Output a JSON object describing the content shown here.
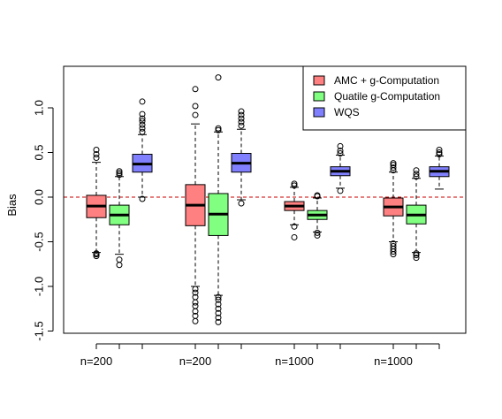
{
  "chart_data": {
    "type": "boxplot",
    "ylabel": "Bias",
    "ylim": [
      -1.5,
      1.4
    ],
    "yticks": [
      -1.5,
      -1.0,
      -0.5,
      0.0,
      0.5,
      1.0
    ],
    "ytick_labels": [
      "-1.5",
      "-1.0",
      "-0.5",
      "0.0",
      "0.5",
      "1.0"
    ],
    "reference_line": {
      "y": 0.0,
      "style": "dashed",
      "color": "#cc0000"
    },
    "group_labels": [
      "n=200",
      "n=200",
      "n=1000",
      "n=1000"
    ],
    "legend": {
      "placement": "top-right",
      "items": [
        {
          "name": "AMC + g-Computation",
          "color": "#ff8080"
        },
        {
          "name": "Quatile g-Computation",
          "color": "#80ff80"
        },
        {
          "name": "WQS",
          "color": "#8080ff"
        }
      ]
    },
    "series": [
      {
        "name": "AMC + g-Computation",
        "color": "#ff8080",
        "boxes": [
          {
            "group": 0,
            "q1": -0.23,
            "median": -0.1,
            "q3": 0.02,
            "whisker_low": -0.62,
            "whisker_high": 0.39,
            "outliers": [
              -0.63,
              -0.64,
              -0.66,
              0.44,
              0.48,
              0.53
            ]
          },
          {
            "group": 1,
            "q1": -0.32,
            "median": -0.09,
            "q3": 0.14,
            "whisker_low": -1.0,
            "whisker_high": 0.82,
            "outliers": [
              -1.03,
              -1.07,
              -1.12,
              -1.18,
              -1.22,
              -1.28,
              -1.33,
              -1.39,
              0.92,
              1.02,
              1.21
            ]
          },
          {
            "group": 2,
            "q1": -0.15,
            "median": -0.1,
            "q3": -0.05,
            "whisker_low": -0.31,
            "whisker_high": 0.11,
            "outliers": [
              -0.33,
              -0.45,
              0.13,
              0.15
            ]
          },
          {
            "group": 3,
            "q1": -0.21,
            "median": -0.11,
            "q3": -0.01,
            "whisker_low": -0.5,
            "whisker_high": 0.28,
            "outliers": [
              -0.52,
              -0.55,
              -0.58,
              -0.61,
              -0.64,
              0.3,
              0.33,
              0.36,
              0.38
            ]
          }
        ]
      },
      {
        "name": "Quatile g-Computation",
        "color": "#80ff80",
        "boxes": [
          {
            "group": 0,
            "q1": -0.31,
            "median": -0.2,
            "q3": -0.09,
            "whisker_low": -0.64,
            "whisker_high": 0.23,
            "outliers": [
              -0.7,
              -0.76,
              0.25,
              0.27,
              0.29
            ]
          },
          {
            "group": 1,
            "q1": -0.43,
            "median": -0.19,
            "q3": 0.04,
            "whisker_low": -1.1,
            "whisker_high": 0.73,
            "outliers": [
              -1.12,
              -1.15,
              -1.2,
              -1.25,
              -1.3,
              -1.35,
              -1.4,
              0.75,
              0.77,
              1.34
            ]
          },
          {
            "group": 2,
            "q1": -0.25,
            "median": -0.2,
            "q3": -0.15,
            "whisker_low": -0.39,
            "whisker_high": -0.01,
            "outliers": [
              -0.4,
              -0.43,
              0.01,
              0.02
            ]
          },
          {
            "group": 3,
            "q1": -0.3,
            "median": -0.2,
            "q3": -0.09,
            "whisker_low": -0.62,
            "whisker_high": 0.21,
            "outliers": [
              -0.63,
              -0.65,
              -0.68,
              0.23,
              0.26,
              0.3
            ]
          }
        ]
      },
      {
        "name": "WQS",
        "color": "#8080ff",
        "boxes": [
          {
            "group": 0,
            "q1": 0.28,
            "median": 0.37,
            "q3": 0.48,
            "whisker_low": 0.0,
            "whisker_high": 0.7,
            "outliers": [
              -0.02,
              0.73,
              0.77,
              0.81,
              0.85,
              0.88,
              0.93,
              1.07
            ]
          },
          {
            "group": 1,
            "q1": 0.28,
            "median": 0.38,
            "q3": 0.49,
            "whisker_low": -0.03,
            "whisker_high": 0.76,
            "outliers": [
              -0.07,
              0.8,
              0.84,
              0.88,
              0.92,
              0.96
            ]
          },
          {
            "group": 2,
            "q1": 0.24,
            "median": 0.29,
            "q3": 0.34,
            "whisker_low": 0.1,
            "whisker_high": 0.47,
            "outliers": [
              0.07,
              0.49,
              0.52,
              0.57
            ]
          },
          {
            "group": 3,
            "q1": 0.23,
            "median": 0.29,
            "q3": 0.34,
            "whisker_low": 0.09,
            "whisker_high": 0.46,
            "outliers": [
              0.48,
              0.5,
              0.53
            ]
          }
        ]
      }
    ]
  }
}
